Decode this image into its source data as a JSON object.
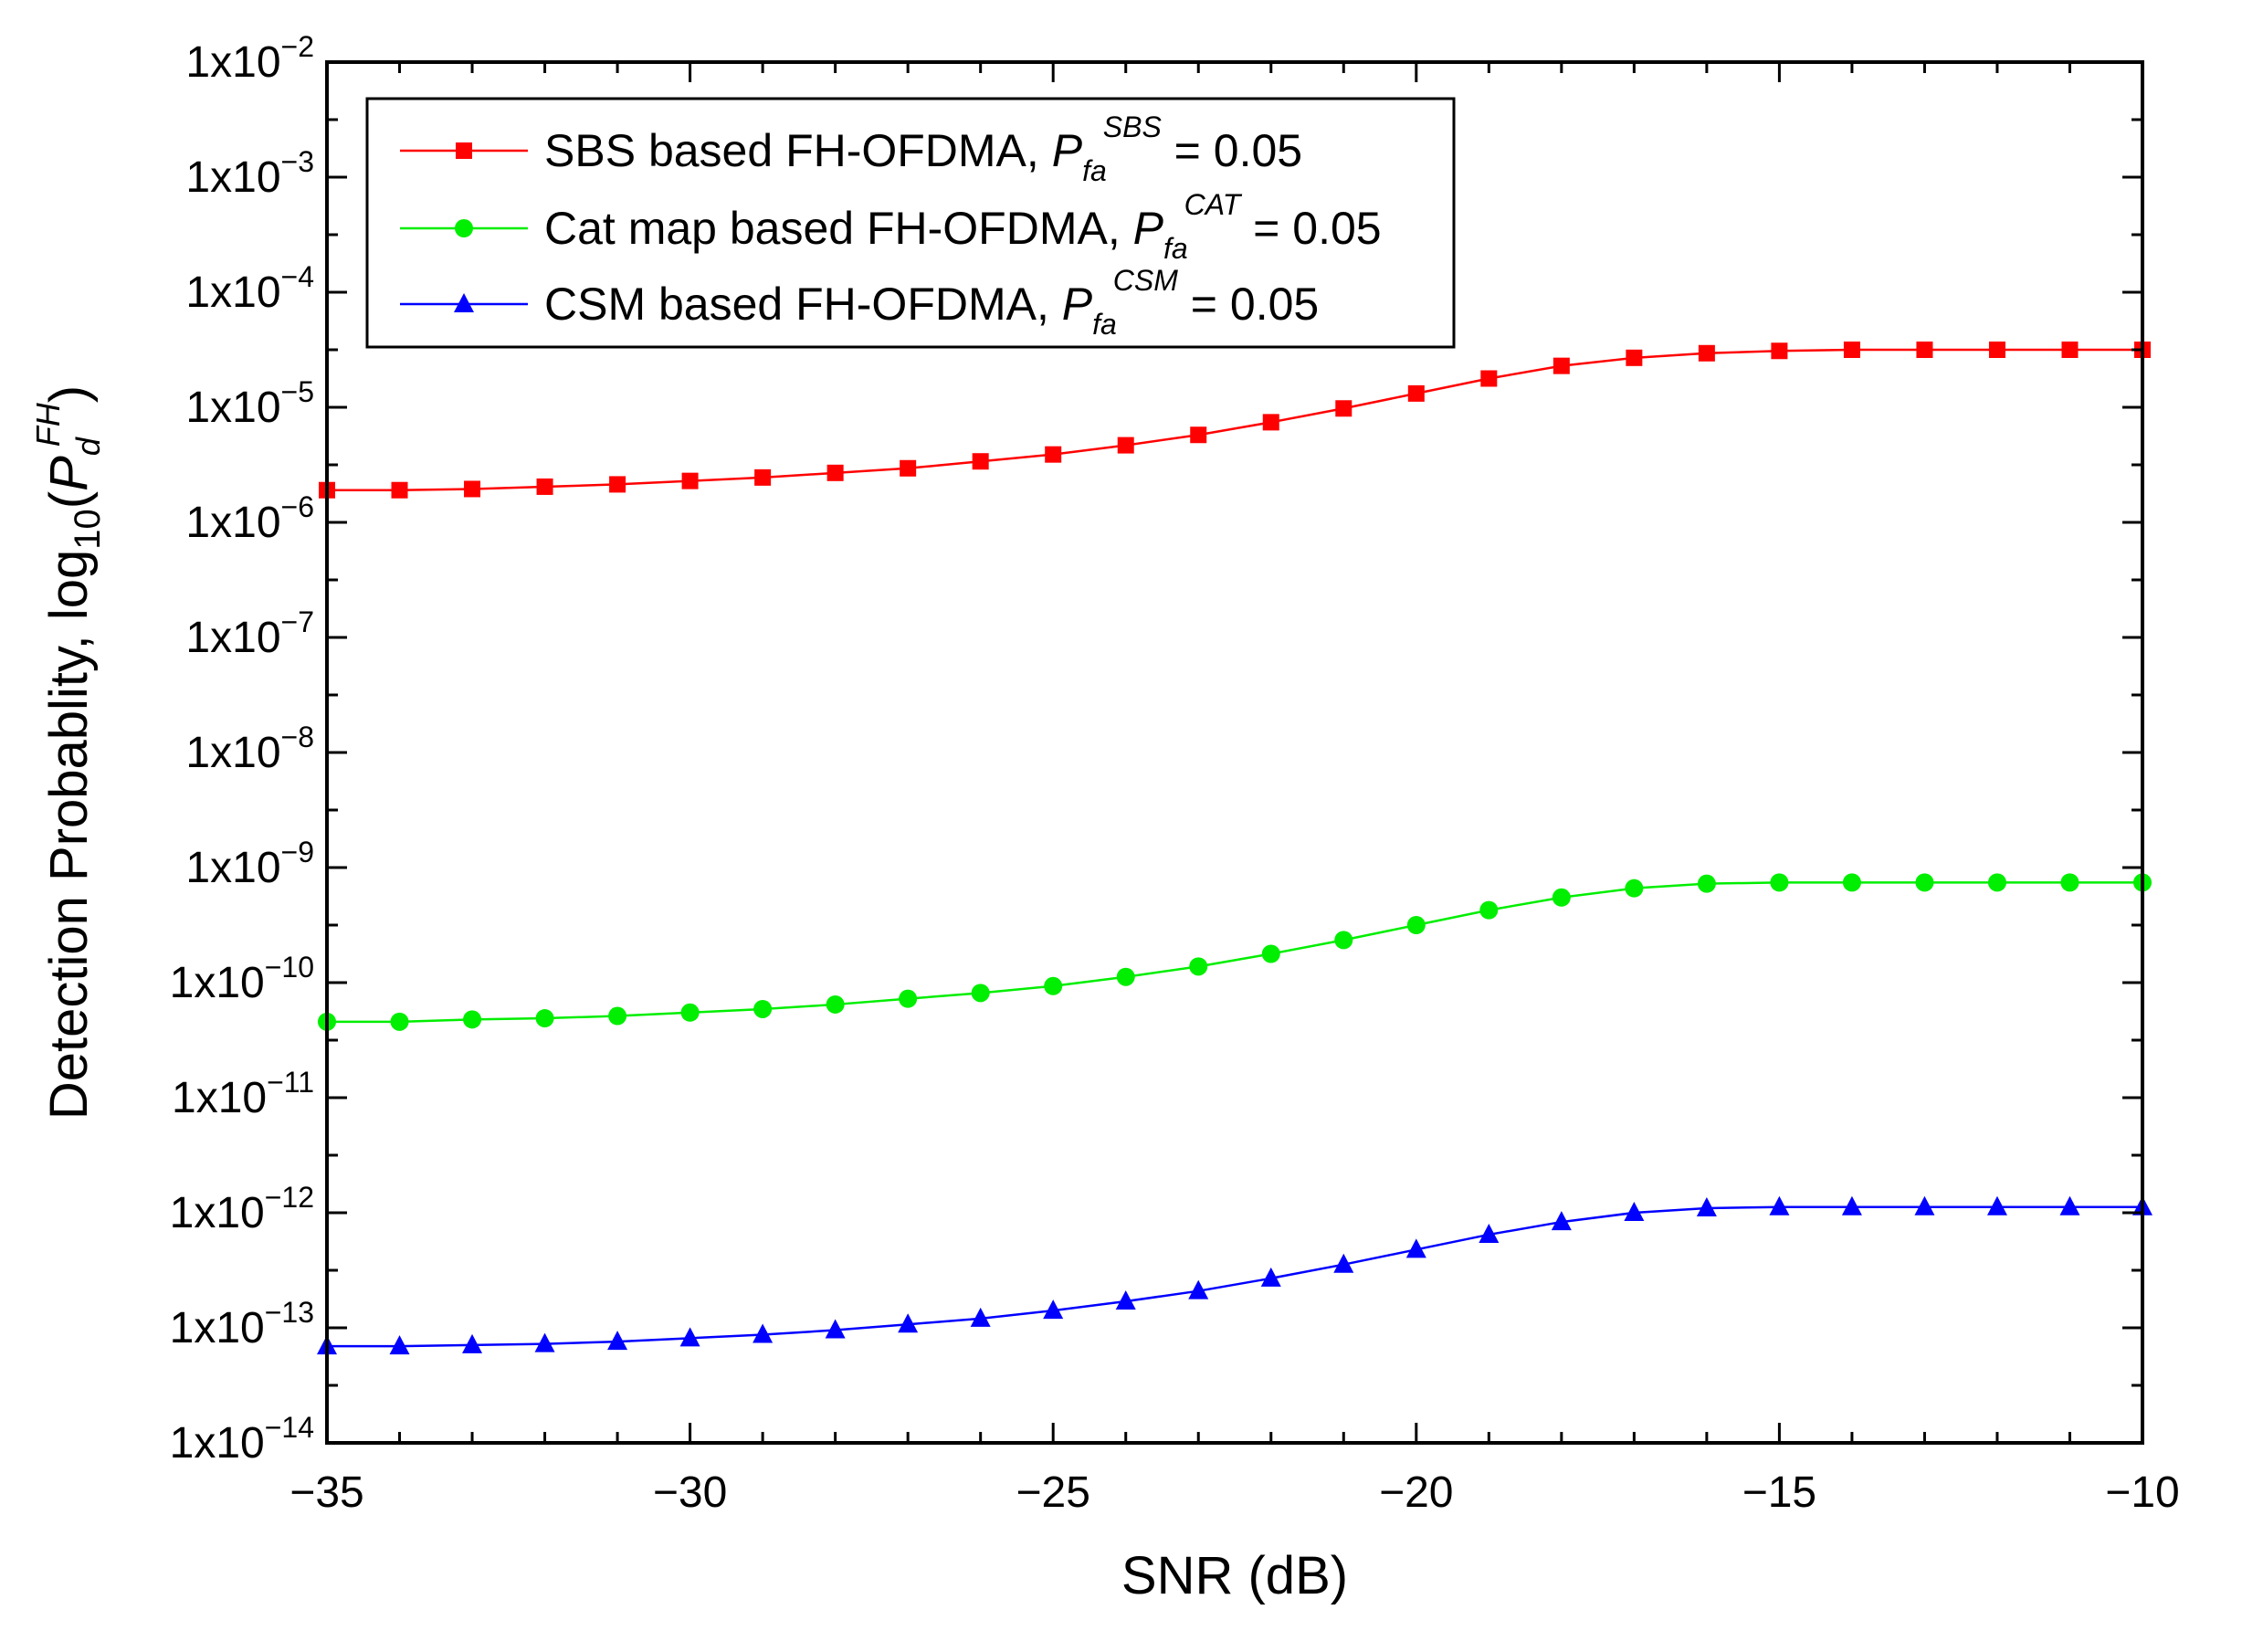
{
  "chart_data": {
    "type": "line",
    "title": "",
    "xlabel": "SNR (dB)",
    "ylabel": {
      "prefix": "Detection Probablity, log",
      "sub10": "10",
      "open": "(",
      "P": "P",
      "sub": "d",
      "sup": "FH",
      "close": ")"
    },
    "xlim": [
      -35,
      -10
    ],
    "ylim_log10": [
      -14,
      -2
    ],
    "yscale": "log",
    "x_ticks": [
      -35,
      -30,
      -25,
      -20,
      -15,
      -10
    ],
    "x_tick_labels": [
      "−35",
      "−30",
      "−25",
      "−20",
      "−15",
      "−10"
    ],
    "y_ticks": [
      {
        "exp": -2,
        "base": "1x10",
        "sup": "−2"
      },
      {
        "exp": -3,
        "base": "1x10",
        "sup": "−3"
      },
      {
        "exp": -4,
        "base": "1x10",
        "sup": "−4"
      },
      {
        "exp": -5,
        "base": "1x10",
        "sup": "−5"
      },
      {
        "exp": -6,
        "base": "1x10",
        "sup": "−6"
      },
      {
        "exp": -7,
        "base": "1x10",
        "sup": "−7"
      },
      {
        "exp": -8,
        "base": "1x10",
        "sup": "−8"
      },
      {
        "exp": -9,
        "base": "1x10",
        "sup": "−9"
      },
      {
        "exp": -10,
        "base": "1x10",
        "sup": "−10"
      },
      {
        "exp": -11,
        "base": "1x10",
        "sup": "−11"
      },
      {
        "exp": -12,
        "base": "1x10",
        "sup": "−12"
      },
      {
        "exp": -13,
        "base": "1x10",
        "sup": "−13"
      },
      {
        "exp": -14,
        "base": "1x10",
        "sup": "−14"
      }
    ],
    "legend_position": "top-left",
    "x": [
      -35,
      -34,
      -33,
      -32,
      -31,
      -30,
      -29,
      -28,
      -27,
      -26,
      -25,
      -24,
      -23,
      -22,
      -21,
      -20,
      -19,
      -18,
      -17,
      -16,
      -15,
      -14,
      -13,
      -12,
      -11,
      -10
    ],
    "series": [
      {
        "name": "SBS based FH-OFDMA",
        "legend_prefix": "SBS based FH-OFDMA, ",
        "legend_P": "P",
        "legend_sub": "fa",
        "legend_sup": "SBS",
        "legend_suffix": " = 0.05",
        "color": "#ff0000",
        "marker": "square",
        "y_log10": [
          -5.72,
          -5.72,
          -5.71,
          -5.69,
          -5.67,
          -5.64,
          -5.61,
          -5.57,
          -5.53,
          -5.47,
          -5.41,
          -5.33,
          -5.24,
          -5.13,
          -5.01,
          -4.88,
          -4.75,
          -4.64,
          -4.57,
          -4.53,
          -4.51,
          -4.5,
          -4.5,
          -4.5,
          -4.5,
          -4.5
        ]
      },
      {
        "name": "Cat map based FH-OFDMA",
        "legend_prefix": "Cat map based FH-OFDMA, ",
        "legend_P": "P",
        "legend_sub": "fa",
        "legend_sup": "CAT",
        "legend_suffix": " = 0.05",
        "color": "#00ee00",
        "marker": "circle",
        "y_log10": [
          -10.34,
          -10.34,
          -10.32,
          -10.31,
          -10.29,
          -10.26,
          -10.23,
          -10.19,
          -10.14,
          -10.09,
          -10.03,
          -9.95,
          -9.86,
          -9.75,
          -9.63,
          -9.5,
          -9.37,
          -9.26,
          -9.18,
          -9.14,
          -9.13,
          -9.13,
          -9.13,
          -9.13,
          -9.13,
          -9.13
        ]
      },
      {
        "name": "CSM based FH-OFDMA",
        "legend_prefix": "CSM based FH-OFDMA, ",
        "legend_P": "P",
        "legend_sub": "fa",
        "legend_sup": "CSM",
        "legend_suffix": " = 0.05",
        "color": "#0000ff",
        "marker": "triangle",
        "y_log10": [
          -13.16,
          -13.16,
          -13.15,
          -13.14,
          -13.12,
          -13.09,
          -13.06,
          -13.02,
          -12.97,
          -12.92,
          -12.85,
          -12.77,
          -12.68,
          -12.57,
          -12.45,
          -12.32,
          -12.19,
          -12.08,
          -12.0,
          -11.96,
          -11.95,
          -11.95,
          -11.95,
          -11.95,
          -11.95,
          -11.95
        ]
      }
    ]
  }
}
